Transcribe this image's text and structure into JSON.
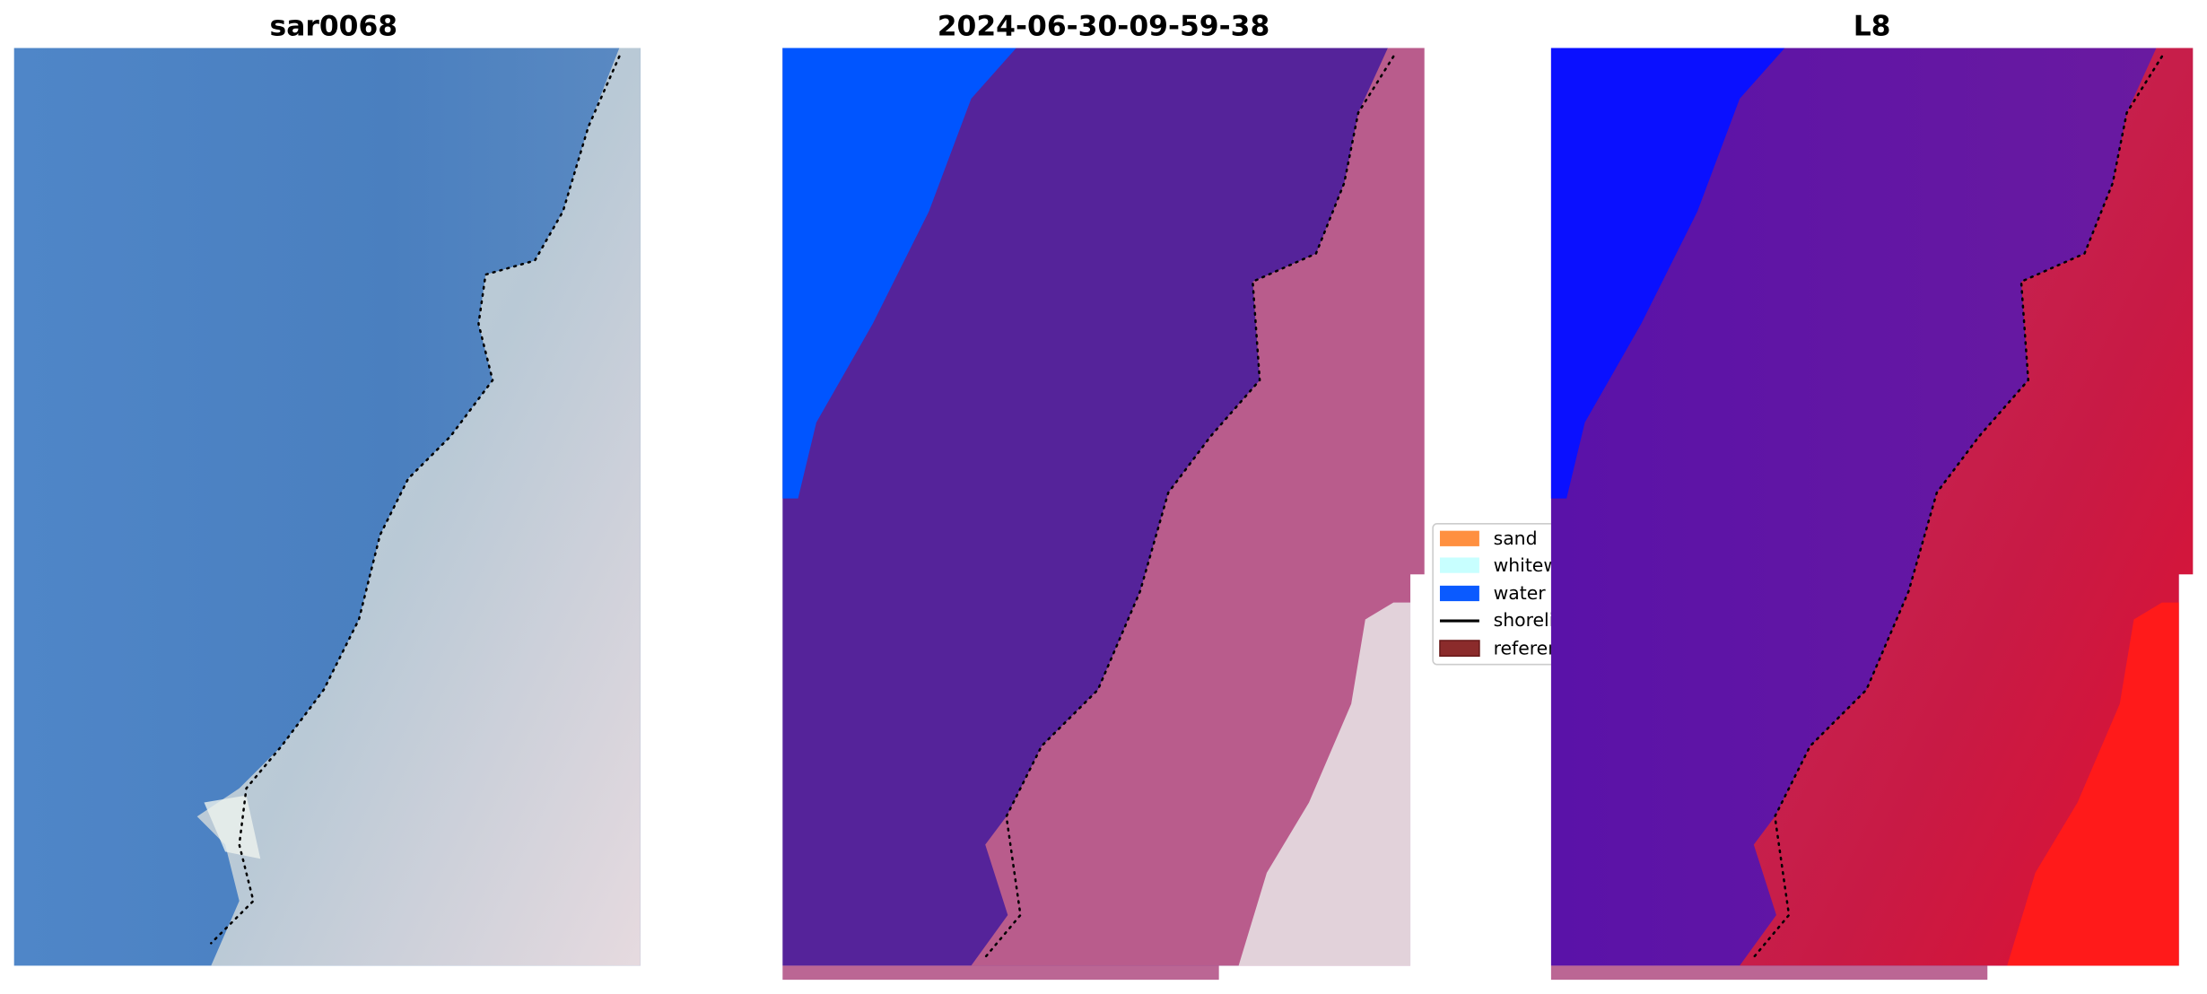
{
  "panels": [
    {
      "title": "sar0068"
    },
    {
      "title": "2024-06-30-09-59-38"
    },
    {
      "title": "L8"
    }
  ],
  "legend": {
    "items": [
      "sand",
      "whitewater",
      "water",
      "shoreline",
      "reference"
    ]
  }
}
